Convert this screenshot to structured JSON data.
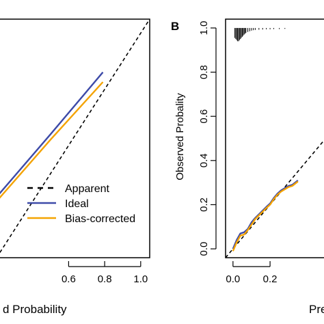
{
  "chart_data": [
    {
      "type": "line",
      "panel_label": "",
      "xlabel": "d Probability",
      "ylabel": "",
      "xlim": [
        0.2,
        1.05
      ],
      "ylim": [
        -0.05,
        1.05
      ],
      "x_ticks": [
        "0.6",
        "0.8",
        "1.0"
      ],
      "x_tick_values": [
        0.6,
        0.8,
        1.0
      ],
      "legend": {
        "placement": "bottom-right",
        "entries": [
          {
            "label": "Apparent",
            "style": "dashed",
            "color": "#000000"
          },
          {
            "label": "Ideal",
            "style": "solid",
            "color": "#3d4aa8"
          },
          {
            "label": "Bias-corrected",
            "style": "solid",
            "color": "#f4a300"
          }
        ]
      },
      "series": [
        {
          "name": "Apparent",
          "style": "dashed",
          "color": "#000000",
          "x": [
            0.2,
            1.05
          ],
          "y": [
            -0.05,
            1.05
          ]
        },
        {
          "name": "Ideal",
          "style": "solid",
          "color": "#3d4aa8",
          "x": [
            0.2,
            0.5,
            0.79
          ],
          "y": [
            0.23,
            0.52,
            0.805
          ]
        },
        {
          "name": "Bias-corrected",
          "style": "solid",
          "color": "#f4a300",
          "x": [
            0.2,
            0.5,
            0.79
          ],
          "y": [
            0.21,
            0.495,
            0.76
          ]
        }
      ]
    },
    {
      "type": "line",
      "panel_label": "B",
      "xlabel": "Pre",
      "ylabel": "Observed Probality",
      "xlim": [
        -0.04,
        0.55
      ],
      "ylim": [
        -0.04,
        1.04
      ],
      "x_ticks": [
        "0.0",
        "0.2"
      ],
      "x_tick_values": [
        0.0,
        0.2
      ],
      "y_ticks": [
        "0.0",
        "0.2",
        "0.4",
        "0.6",
        "0.8",
        "1.0"
      ],
      "y_tick_values": [
        0.0,
        0.2,
        0.4,
        0.6,
        0.8,
        1.0
      ],
      "series": [
        {
          "name": "Apparent",
          "style": "dashed",
          "color": "#000000",
          "x": [
            -0.04,
            0.55
          ],
          "y": [
            -0.04,
            0.55
          ]
        },
        {
          "name": "Ideal",
          "style": "solid",
          "color": "#3d4aa8",
          "x": [
            0.0,
            0.02,
            0.04,
            0.06,
            0.08,
            0.1,
            0.12,
            0.15,
            0.18,
            0.2,
            0.22,
            0.24,
            0.26,
            0.28,
            0.3,
            0.32,
            0.35
          ],
          "y": [
            0.0,
            0.04,
            0.07,
            0.075,
            0.09,
            0.12,
            0.14,
            0.165,
            0.19,
            0.205,
            0.23,
            0.25,
            0.265,
            0.275,
            0.285,
            0.29,
            0.31
          ]
        },
        {
          "name": "Bias-corrected",
          "style": "solid",
          "color": "#f4a300",
          "x": [
            0.0,
            0.02,
            0.04,
            0.06,
            0.08,
            0.1,
            0.12,
            0.15,
            0.18,
            0.2,
            0.22,
            0.24,
            0.26,
            0.28,
            0.3,
            0.32,
            0.35
          ],
          "y": [
            -0.01,
            0.03,
            0.06,
            0.065,
            0.085,
            0.11,
            0.135,
            0.16,
            0.185,
            0.2,
            0.225,
            0.245,
            0.26,
            0.27,
            0.28,
            0.285,
            0.305
          ]
        }
      ],
      "rug": {
        "y": 1.0,
        "x": [
          0.01,
          0.015,
          0.02,
          0.025,
          0.03,
          0.035,
          0.04,
          0.045,
          0.05,
          0.055,
          0.06,
          0.065,
          0.07,
          0.08,
          0.09,
          0.1,
          0.11,
          0.12,
          0.14,
          0.16,
          0.18,
          0.2,
          0.22,
          0.25,
          0.28
        ],
        "lengths": [
          0.045,
          0.05,
          0.055,
          0.06,
          0.06,
          0.055,
          0.05,
          0.045,
          0.04,
          0.035,
          0.03,
          0.026,
          0.022,
          0.018,
          0.015,
          0.012,
          0.01,
          0.009,
          0.008,
          0.007,
          0.006,
          0.006,
          0.005,
          0.005,
          0.004
        ]
      }
    }
  ]
}
